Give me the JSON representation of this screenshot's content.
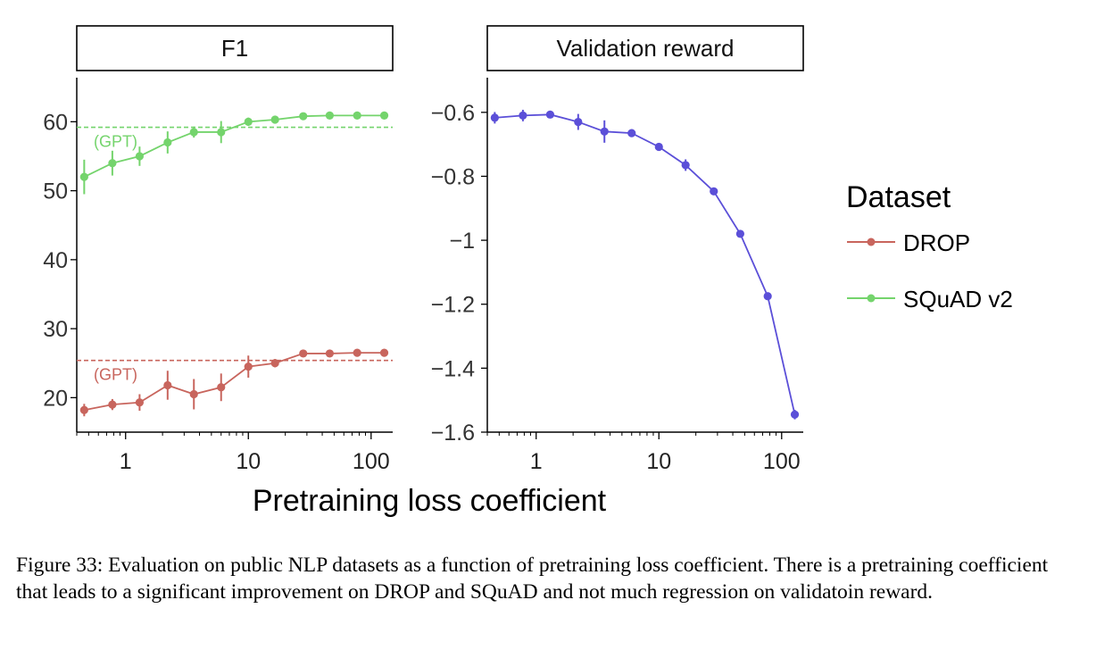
{
  "chart_data": [
    {
      "type": "line",
      "title": "F1",
      "xlabel": "Pretraining loss coefficient",
      "ylabel": "",
      "xscale": "log",
      "xlim": [
        0.4,
        150
      ],
      "ylim": [
        15,
        66
      ],
      "x_ticks": [
        1,
        10,
        100
      ],
      "x_tick_labels": [
        "1",
        "10",
        "100"
      ],
      "y_ticks": [
        20,
        30,
        40,
        50,
        60
      ],
      "y_tick_labels": [
        "20",
        "30",
        "40",
        "50",
        "60"
      ],
      "grid": false,
      "series": [
        {
          "name": "SQuAD v2",
          "color": "#74d46c",
          "x": [
            0.46,
            0.78,
            1.3,
            2.2,
            3.6,
            6,
            10,
            16.5,
            28,
            46,
            77,
            128
          ],
          "y": [
            52,
            54,
            55,
            57,
            58.5,
            58.5,
            60,
            60.3,
            60.8,
            60.9,
            60.9,
            60.9
          ],
          "err": [
            2.5,
            1.8,
            1.4,
            1.6,
            0.8,
            1.6,
            0.6,
            0.4,
            0.4,
            0.3,
            0.3,
            0.3
          ],
          "reference": {
            "label": "(GPT)",
            "y": 59.2
          }
        },
        {
          "name": "DROP",
          "color": "#c8655d",
          "x": [
            0.46,
            0.78,
            1.3,
            2.2,
            3.6,
            6,
            10,
            16.5,
            28,
            46,
            77,
            128
          ],
          "y": [
            18.2,
            19,
            19.3,
            21.8,
            20.5,
            21.5,
            24.5,
            25,
            26.4,
            26.4,
            26.5,
            26.5
          ],
          "err": [
            0.9,
            0.8,
            1.2,
            2.1,
            2.2,
            2.0,
            1.6,
            0.6,
            0.4,
            0.4,
            0.4,
            0.4
          ],
          "reference": {
            "label": "(GPT)",
            "y": 25.4
          }
        }
      ]
    },
    {
      "type": "line",
      "title": "Validation reward",
      "xlabel": "Pretraining loss coefficient",
      "ylabel": "",
      "xscale": "log",
      "xlim": [
        0.4,
        150
      ],
      "ylim": [
        -1.6,
        -0.5
      ],
      "x_ticks": [
        1,
        10,
        100
      ],
      "x_tick_labels": [
        "1",
        "10",
        "100"
      ],
      "y_ticks": [
        -1.6,
        -1.4,
        -1.2,
        -1,
        -0.8,
        -0.6
      ],
      "y_tick_labels": [
        "−1.6",
        "−1.4",
        "−1.2",
        "−1",
        "−0.8",
        "−0.6"
      ],
      "grid": false,
      "series": [
        {
          "name": "",
          "color": "#5b4fd8",
          "x": [
            0.46,
            0.78,
            1.3,
            2.2,
            3.6,
            6,
            10,
            16.5,
            28,
            46,
            77,
            128
          ],
          "y": [
            -0.617,
            -0.61,
            -0.607,
            -0.63,
            -0.66,
            -0.665,
            -0.708,
            -0.765,
            -0.847,
            -0.98,
            -1.175,
            -1.545
          ],
          "err": [
            0.018,
            0.018,
            0.01,
            0.025,
            0.035,
            0.012,
            0.01,
            0.018,
            0.01,
            0.01,
            0.01,
            0.015
          ]
        }
      ]
    }
  ],
  "axis_label": "Pretraining loss coefficient",
  "legend": {
    "title": "Dataset",
    "placement": "right",
    "items": [
      {
        "label": "DROP",
        "color": "#c8655d"
      },
      {
        "label": "SQuAD v2",
        "color": "#74d46c"
      }
    ]
  },
  "caption": "Figure 33: Evaluation on public NLP datasets as a function of pretraining loss coefficient. There is a pretraining coefficient that leads to a significant improvement on DROP and SQuAD and not much regression on validatoin reward."
}
